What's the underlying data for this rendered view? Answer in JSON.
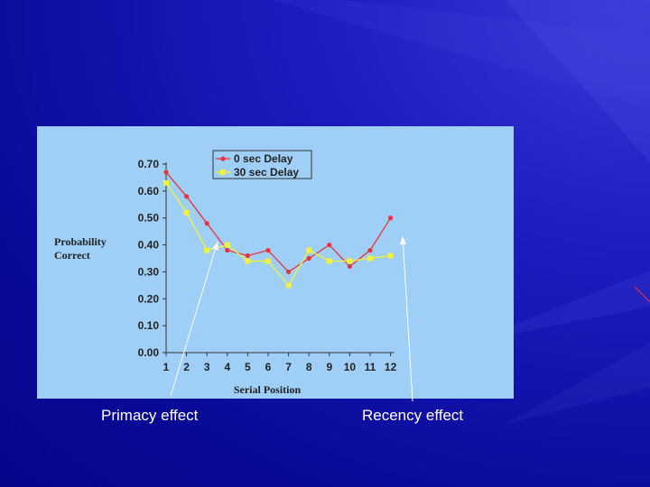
{
  "colors": {
    "background": "#0a0a9a",
    "panel": "#9fcff7",
    "series_0": "#e8333a",
    "series_1": "#f2f23a",
    "annotation": "#ffffff"
  },
  "annotations": {
    "primacy": "Primacy effect",
    "recency": "Recency effect"
  },
  "chart_data": {
    "type": "line",
    "title": "",
    "ylabel_line1": "Probability",
    "ylabel_line2": "Correct",
    "xlabel": "Serial Position",
    "ylim": [
      0,
      0.7
    ],
    "yticks": [
      "0.00",
      "0.10",
      "0.20",
      "0.30",
      "0.40",
      "0.50",
      "0.60",
      "0.70"
    ],
    "x": [
      1,
      2,
      3,
      4,
      5,
      6,
      7,
      8,
      9,
      10,
      11,
      12
    ],
    "legend_position": "top",
    "grid": false,
    "series": [
      {
        "name": "0 sec Delay",
        "color": "#e8333a",
        "values": [
          0.67,
          0.58,
          0.48,
          0.38,
          0.36,
          0.38,
          0.3,
          0.35,
          0.4,
          0.32,
          0.38,
          0.5
        ]
      },
      {
        "name": "30 sec Delay",
        "color": "#f2f23a",
        "values": [
          0.63,
          0.52,
          0.38,
          0.4,
          0.34,
          0.34,
          0.25,
          0.38,
          0.34,
          0.34,
          0.35,
          0.36
        ]
      }
    ]
  }
}
